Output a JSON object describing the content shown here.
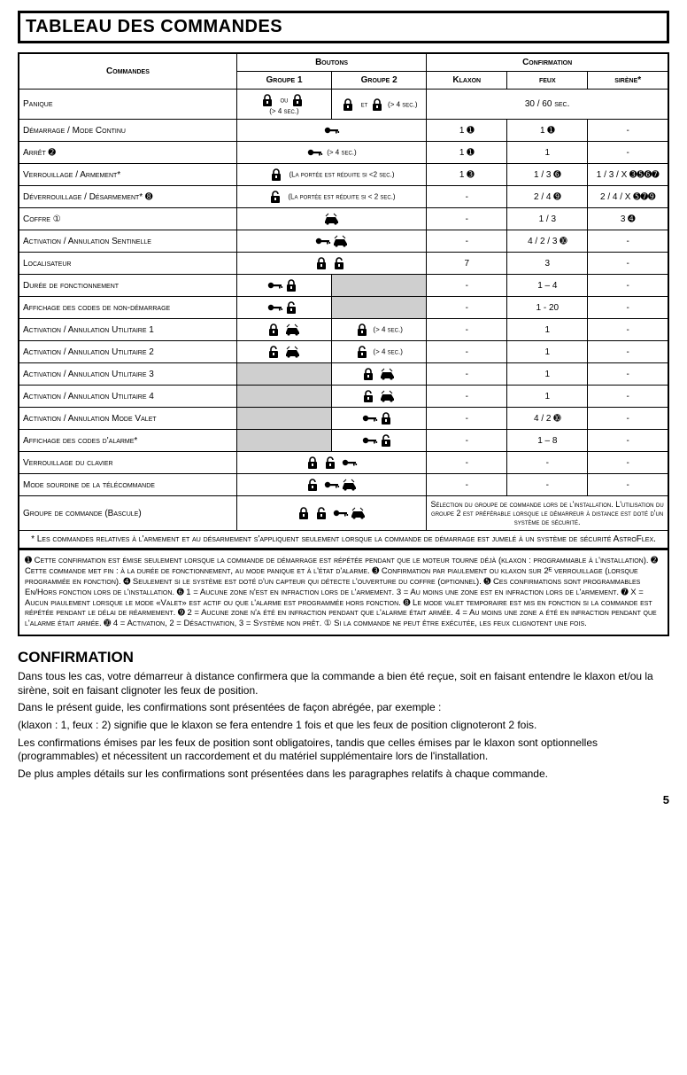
{
  "title": "TABLEAU DES COMMANDES",
  "header": {
    "commandes": "Commandes",
    "boutons": "Boutons",
    "groupe1": "Groupe 1",
    "groupe2": "Groupe 2",
    "confirmation": "Confirmation",
    "klaxon": "Klaxon",
    "feux": "feux",
    "sirene": "sirène*"
  },
  "rows": [
    {
      "label": "Panique",
      "g1": "lock-or-lock",
      "g1_note": "(> 4 sec.)",
      "g2": "lock-and-lock",
      "g2_note": "(> 4 sec.)",
      "conf_span": "30 / 60 sec."
    },
    {
      "label": "Démarrage / Mode Continu",
      "icons": "key",
      "klaxon": "1 ➊",
      "feux": "1 ➊",
      "sirene": "-"
    },
    {
      "label": "Arrêt ➋",
      "icons": "key",
      "icons_note": "(> 4 sec.)",
      "klaxon": "1 ➊",
      "feux": "1",
      "sirene": "-"
    },
    {
      "label": "Verrouillage / Armement*",
      "icons": "lock",
      "icons_note": "(La portée est réduite si <2 sec.)",
      "klaxon": "1 ➌",
      "feux": "1 / 3 ➏",
      "sirene": "1 / 3 / X ➌➎➏➐"
    },
    {
      "label": "Déverrouillage / Désarmement* ➑",
      "icons": "unlock",
      "icons_note": "(La portée est réduite si < 2 sec.)",
      "klaxon": "-",
      "feux": "2 / 4 ➒",
      "sirene": "2 / 4 / X ➎➐➒"
    },
    {
      "label": "Coffre ①",
      "icons": "car",
      "klaxon": "-",
      "feux": "1 / 3",
      "sirene": "3 ➍"
    },
    {
      "label": "Activation / Annulation Sentinelle",
      "icons": "key-car",
      "klaxon": "-",
      "feux": "4 / 2 / 3 ➓",
      "sirene": "-"
    },
    {
      "label": "Localisateur",
      "icons": "lock-unlock",
      "klaxon": "7",
      "feux": "3",
      "sirene": "-"
    },
    {
      "label": "Durée de fonctionnement",
      "g1_icons": "key-lock",
      "g2_grey": true,
      "klaxon": "-",
      "feux": "1 – 4",
      "sirene": "-"
    },
    {
      "label": "Affichage des codes de non-démarrage",
      "g1_icons": "key-unlock",
      "g2_grey": true,
      "klaxon": "-",
      "feux": "1 - 20",
      "sirene": "-"
    },
    {
      "label": "Activation / Annulation Utilitaire 1",
      "g1_icons": "lock-car",
      "g2_icons": "lock",
      "g2_note": "(> 4 sec.)",
      "klaxon": "-",
      "feux": "1",
      "sirene": "-"
    },
    {
      "label": "Activation / Annulation Utilitaire 2",
      "g1_icons": "unlock-car",
      "g2_icons": "unlock",
      "g2_note": "(> 4 sec.)",
      "klaxon": "-",
      "feux": "1",
      "sirene": "-"
    },
    {
      "label": "Activation / Annulation Utilitaire 3",
      "g1_grey": true,
      "g2_icons": "lock-car",
      "klaxon": "-",
      "feux": "1",
      "sirene": "-"
    },
    {
      "label": "Activation / Annulation Utilitaire 4",
      "g1_grey": true,
      "g2_icons": "unlock-car",
      "klaxon": "-",
      "feux": "1",
      "sirene": "-"
    },
    {
      "label": "Activation / Annulation Mode Valet",
      "g1_grey": true,
      "g2_icons": "key-lock",
      "klaxon": "-",
      "feux": "4 / 2 ➓",
      "sirene": "-"
    },
    {
      "label": "Affichage des codes d'alarme*",
      "g1_grey": true,
      "g2_icons": "key-unlock",
      "klaxon": "-",
      "feux": "1 – 8",
      "sirene": "-"
    },
    {
      "label": "Verrouillage du clavier",
      "icons": "lock-unlock-key",
      "klaxon": "-",
      "feux": "-",
      "sirene": "-"
    },
    {
      "label": "Mode sourdine de la télécommande",
      "icons": "unlock-key-car",
      "klaxon": "-",
      "feux": "-",
      "sirene": "-"
    },
    {
      "label": "Groupe de commande (Bascule)",
      "icons": "lock-unlock-key-car",
      "conf_text": "Sélection du groupe de commande lors de l'installation.  L'utilisation du groupe 2 est préférable lorsque le démarreur à distance est doté d'un système de sécurité."
    }
  ],
  "asterisk_note": "* Les commandes relatives à l'armement et au désarmement s'appliquent seulement lorsque la commande de démarrage est jumelé à un système de sécurité AstroFlex.",
  "footnotes": "➊  Cette confirmation est émise seulement lorsque la commande de démarrage est répétée pendant que le moteur tourne déjà (klaxon : programmable à l'installation). ➋  Cette commande met fin : à la durée de fonctionnement, au mode panique et à l'état d'alarme. ➌ Confirmation par piaulement ou klaxon sur 2ᴱ verrouillage (lorsque programmée en fonction). ➍  Seulement si le système est doté d'un capteur qui détecte l'ouverture du coffre (optionnel). ➎  Ces confirmations sont programmables En/Hors fonction lors de l'installation. ➏  1 = Aucune zone n'est en infraction lors de l'armement. 3 = Au moins une zone est en infraction lors de l'armement. ➐  X = Aucun piaulement lorsque le mode «Valet» est actif ou que l'alarme est programmée hors fonction. ➑  Le mode valet temporaire est mis en fonction si la commande est répétée pendant le délai de réarmement. ➒  2 = Aucune zone n'a été en infraction pendant que l'alarme était armée. 4 = Au moins une zone a été en infraction pendant que l'alarme était armée. ➓  4 = Activation, 2 = Désactivation, 3 = Système non prêt. ①  Si la commande ne peut être exécutée, les feux clignotent une fois.",
  "confirmation_h": "CONFIRMATION",
  "para1": "Dans tous les cas, votre démarreur à distance confirmera que la commande a bien été reçue, soit en faisant entendre le klaxon et/ou la sirène, soit en faisant clignoter les feux de position.",
  "para2": "Dans le présent guide, les confirmations sont présentées de façon abrégée, par exemple :",
  "para3": "(klaxon : 1, feux : 2) signifie que le klaxon se fera entendre 1 fois et que les feux de position clignoteront 2 fois.",
  "para4": "Les confirmations émises par les feux de position sont obligatoires, tandis que celles émises par le klaxon sont optionnelles (programmables) et nécessitent un raccordement et du matériel supplémentaire lors de l'installation.",
  "para5": "De plus amples détails sur les confirmations sont présentées dans les paragraphes relatifs à chaque commande.",
  "pagenum": "5",
  "words": {
    "ou": "ou",
    "et": "et"
  }
}
